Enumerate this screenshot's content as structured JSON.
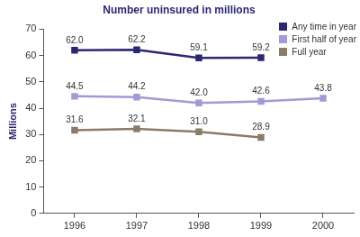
{
  "chart_data": {
    "type": "line",
    "title": "Number uninsured in millions",
    "y_label": "Millions",
    "categories": [
      "1996",
      "1997",
      "1998",
      "1999",
      "2000"
    ],
    "series": [
      {
        "name": "Any time in year",
        "color": "#2b2773",
        "values": [
          62.0,
          62.2,
          59.1,
          59.2,
          null
        ],
        "value_labels": [
          "62.0",
          "62.2",
          "59.1",
          "59.2",
          null
        ]
      },
      {
        "name": "First half of year",
        "color": "#a29ad6",
        "values": [
          44.5,
          44.2,
          42.0,
          42.6,
          43.8
        ],
        "value_labels": [
          "44.5",
          "44.2",
          "42.0",
          "42.6",
          "43.8"
        ]
      },
      {
        "name": "Full year",
        "color": "#8b7b69",
        "values": [
          31.6,
          32.1,
          31.0,
          28.9,
          null
        ],
        "value_labels": [
          "31.6",
          "32.1",
          "31.0",
          "28.9",
          null
        ]
      }
    ],
    "ylim": [
      0,
      70
    ],
    "yticks": [
      0,
      10,
      20,
      30,
      40,
      50,
      60,
      70
    ],
    "grid": false,
    "legend": "right",
    "data_labels": true,
    "marker": "square",
    "line_style": "solid"
  }
}
